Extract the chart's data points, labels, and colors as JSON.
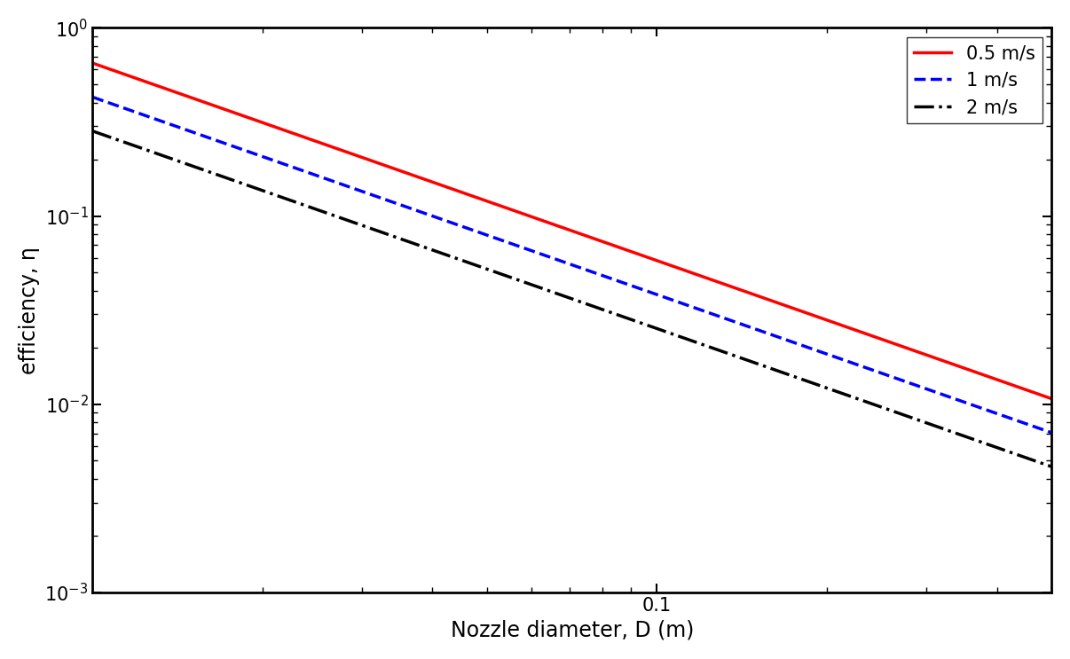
{
  "xlabel": "Nozzle diameter, D (m)",
  "ylabel": "efficiency, η",
  "velocities": [
    0.5,
    1.0,
    2.0
  ],
  "velocity_labels": [
    "0.5 m/s",
    "1 m/s",
    "2 m/s"
  ],
  "colors": [
    "#ff0000",
    "#0000ff",
    "#000000"
  ],
  "linestyles": [
    "-",
    "--",
    "-."
  ],
  "linewidths": [
    2.5,
    2.5,
    2.5
  ],
  "D_min": 0.01,
  "D_max": 0.5,
  "y_min": 0.001,
  "y_max": 1.0,
  "n_points": 500,
  "background": "#ffffff",
  "legend_loc": "upper right",
  "legend_fontsize": 15,
  "axis_label_fontsize": 17,
  "tick_fontsize": 15,
  "C": 0.065,
  "alpha": -2.0,
  "beta": -0.4,
  "figwidth": 12.06,
  "figheight": 7.43,
  "dpi": 100
}
